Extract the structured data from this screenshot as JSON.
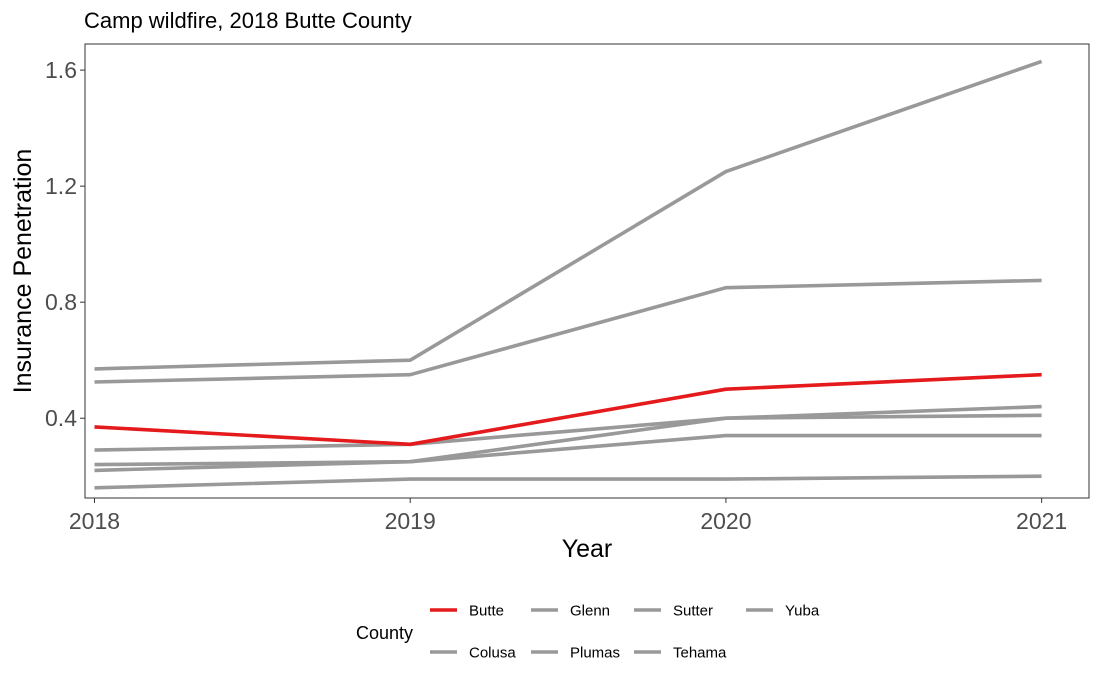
{
  "chart_data": {
    "type": "line",
    "title": "Camp wildfire, 2018 Butte County",
    "xlabel": "Year",
    "ylabel": "Insurance Penetration",
    "x": [
      2018,
      2019,
      2020,
      2021
    ],
    "x_tick_labels": [
      "2018",
      "2019",
      "2020",
      "2021"
    ],
    "y_ticks": [
      0.4,
      0.8,
      1.2,
      1.6
    ],
    "y_tick_labels": [
      "0.4",
      "0.8",
      "1.2",
      "1.6"
    ],
    "xlim": [
      2017.97,
      2021.15
    ],
    "ylim": [
      0.125,
      1.69
    ],
    "legend_title": "County",
    "legend_position": "bottom",
    "highlight_color": "#e41a1c",
    "other_color": "#999999",
    "series": [
      {
        "name": "Butte",
        "values": [
          0.37,
          0.31,
          0.5,
          0.55
        ],
        "highlight": true
      },
      {
        "name": "Colusa",
        "values": [
          0.57,
          0.6,
          1.25,
          1.63
        ],
        "highlight": false
      },
      {
        "name": "Glenn",
        "values": [
          0.525,
          0.55,
          0.85,
          0.875
        ],
        "highlight": false
      },
      {
        "name": "Plumas",
        "values": [
          0.29,
          0.31,
          0.4,
          0.44
        ],
        "highlight": false
      },
      {
        "name": "Sutter",
        "values": [
          0.24,
          0.25,
          0.4,
          0.41
        ],
        "highlight": false
      },
      {
        "name": "Tehama",
        "values": [
          0.22,
          0.25,
          0.34,
          0.34
        ],
        "highlight": false
      },
      {
        "name": "Yuba",
        "values": [
          0.16,
          0.19,
          0.19,
          0.2
        ],
        "highlight": false
      }
    ]
  }
}
